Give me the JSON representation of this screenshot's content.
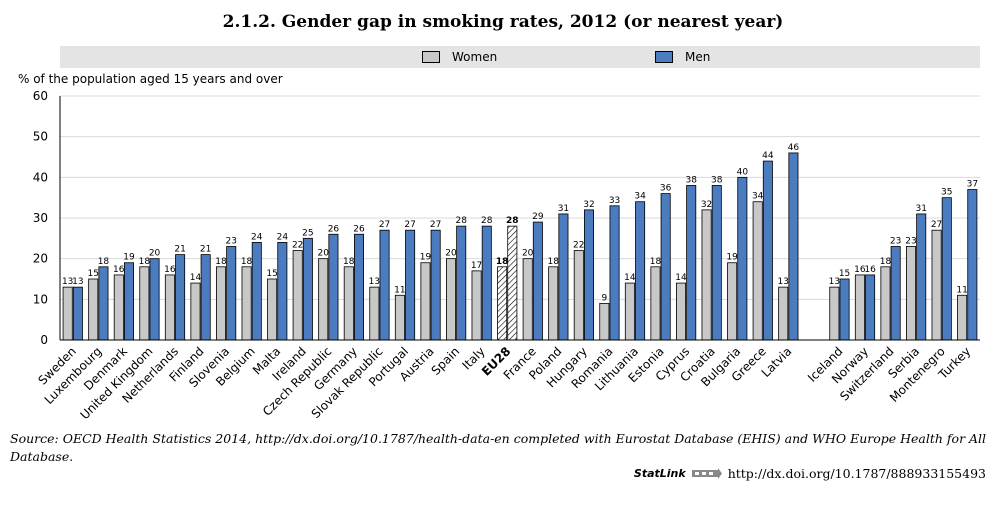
{
  "title": "2.1.2.   Gender gap in smoking rates, 2012 (or nearest year)",
  "legend": {
    "women": "Women",
    "men": "Men"
  },
  "colors": {
    "women": "#c8c8c8",
    "men": "#4a7cbf",
    "eu28": "#ffffff",
    "legend_bg": "#e4e4e4"
  },
  "source_text": "Source: OECD Health Statistics 2014, http://dx.doi.org/10.1787/health-data-en completed with Eurostat Database (EHIS) and WHO Europe Health for All Database.",
  "statlink": {
    "brand": "StatLink",
    "url": "http://dx.doi.org/10.1787/888933155493"
  },
  "chart_data": {
    "type": "bar",
    "ylabel": "% of the population aged 15 years and over",
    "ylim": [
      0,
      60
    ],
    "yticks": [
      0,
      10,
      20,
      30,
      40,
      50,
      60
    ],
    "grid": true,
    "legend_position": "top",
    "categories": [
      "Sweden",
      "Luxembourg",
      "Denmark",
      "United Kingdom",
      "Netherlands",
      "Finland",
      "Slovenia",
      "Belgium",
      "Malta",
      "Ireland",
      "Czech Republic",
      "Germany",
      "Slovak Republic",
      "Portugal",
      "Austria",
      "Spain",
      "Italy",
      "EU28",
      "France",
      "Poland",
      "Hungary",
      "Romania",
      "Lithuania",
      "Estonia",
      "Cyprus",
      "Croatia",
      "Bulgaria",
      "Greece",
      "Latvia",
      "",
      "Iceland",
      "Norway",
      "Switzerland",
      "Serbia",
      "Montenegro",
      "Turkey"
    ],
    "highlight_category": "EU28",
    "series": [
      {
        "name": "Women",
        "values": [
          13,
          15,
          16,
          18,
          16,
          14,
          18,
          18,
          15,
          22,
          20,
          18,
          13,
          11,
          19,
          20,
          17,
          18,
          20,
          18,
          22,
          9,
          14,
          18,
          14,
          32,
          19,
          34,
          13,
          null,
          13,
          16,
          18,
          23,
          27,
          11
        ]
      },
      {
        "name": "Men",
        "values": [
          13,
          18,
          19,
          20,
          21,
          21,
          23,
          24,
          24,
          25,
          26,
          26,
          27,
          27,
          27,
          28,
          28,
          28,
          29,
          31,
          32,
          33,
          34,
          36,
          38,
          38,
          40,
          44,
          46,
          null,
          15,
          16,
          23,
          31,
          35,
          37
        ]
      }
    ]
  }
}
